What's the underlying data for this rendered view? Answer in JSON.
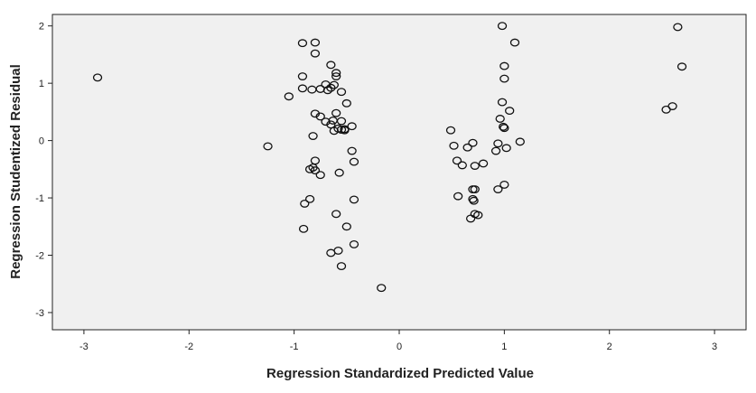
{
  "chart_data": {
    "type": "scatter",
    "title": "",
    "xlabel": "Regression Standardized Predicted Value",
    "ylabel": "Regression Studentized Residual",
    "xlim": [
      -3.3,
      3.3
    ],
    "ylim": [
      -3.3,
      2.2
    ],
    "xticks": [
      -3,
      -2,
      -1,
      0,
      1,
      2,
      3
    ],
    "yticks": [
      -3,
      -2,
      -1,
      0,
      1,
      2
    ],
    "grid": false,
    "legend": "none",
    "colors": {
      "plot_bg": "#f0f0f0",
      "marker_stroke": "#111111",
      "axis": "#222222"
    },
    "series": [
      {
        "x": [
          -2.87,
          -1.25,
          -1.05,
          -0.92,
          -0.8,
          -0.8,
          -0.92,
          -0.7,
          -0.92,
          -0.83,
          -0.75,
          -0.68,
          -0.65,
          -0.62,
          -0.65,
          -0.6,
          -0.6,
          -0.55,
          -0.5,
          -0.8,
          -0.75,
          -0.63,
          -0.7,
          -0.65,
          -0.6,
          -0.55,
          -0.45,
          -0.82,
          -0.58,
          -0.52,
          -0.52,
          -0.62,
          -0.55,
          -0.45,
          -0.8,
          -0.43,
          -0.82,
          -0.85,
          -0.8,
          -0.75,
          -0.57,
          -0.85,
          -0.9,
          -0.43,
          -0.6,
          -0.5,
          -0.91,
          -0.43,
          -0.65,
          -0.58,
          -0.55,
          -0.17,
          0.49,
          0.52,
          0.55,
          0.6,
          0.65,
          0.7,
          0.72,
          0.7,
          0.8,
          0.56,
          0.72,
          0.7,
          0.71,
          0.68,
          0.72,
          0.75,
          0.92,
          0.94,
          0.96,
          0.99,
          1.0,
          1.02,
          1.0,
          1.05,
          0.94,
          0.98,
          1.0,
          1.15,
          1.1,
          0.98,
          1.0,
          2.54,
          2.6,
          2.65,
          2.69
        ],
        "y": [
          1.1,
          -0.1,
          0.77,
          1.7,
          1.71,
          1.52,
          1.12,
          0.98,
          0.91,
          0.89,
          0.9,
          0.88,
          0.92,
          0.97,
          1.32,
          1.18,
          1.12,
          0.85,
          0.65,
          0.47,
          0.42,
          0.35,
          0.33,
          0.28,
          0.48,
          0.34,
          0.25,
          0.08,
          0.21,
          0.18,
          0.2,
          0.17,
          0.19,
          -0.18,
          -0.35,
          -0.37,
          -0.47,
          -0.5,
          -0.52,
          -0.6,
          -0.56,
          -1.02,
          -1.1,
          -1.03,
          -1.28,
          -1.5,
          -1.54,
          -1.81,
          -1.96,
          -1.92,
          -2.19,
          -2.57,
          0.18,
          -0.09,
          -0.35,
          -0.43,
          -0.12,
          -0.04,
          -0.44,
          -0.85,
          -0.4,
          -0.97,
          -0.85,
          -1.02,
          -1.05,
          -1.36,
          -1.28,
          -1.3,
          -0.18,
          -0.05,
          0.38,
          0.24,
          0.22,
          -0.13,
          -0.77,
          0.52,
          -0.85,
          0.67,
          1.08,
          -0.02,
          1.71,
          2.0,
          1.3,
          0.54,
          0.6,
          1.98,
          1.29
        ]
      }
    ]
  }
}
